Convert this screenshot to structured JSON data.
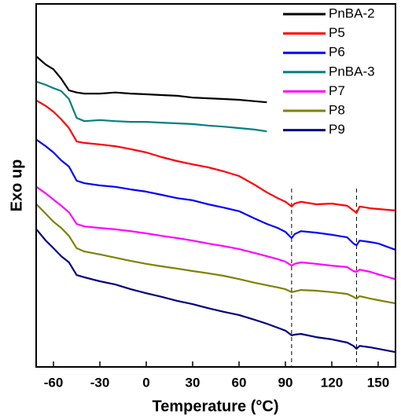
{
  "chart_data": {
    "type": "line",
    "xlabel": "Temperature (°C)",
    "ylabel": "Exo up",
    "xlim": [
      -71.2,
      161.2
    ],
    "ylim": [
      0,
      100
    ],
    "xticks": [
      -60,
      -30,
      0,
      30,
      60,
      90,
      120,
      150
    ],
    "legend": "upper right",
    "vlines": [
      94,
      136
    ],
    "x": [
      -71,
      -65,
      -60,
      -55,
      -50,
      -45,
      -40,
      -30,
      -20,
      -10,
      0,
      10,
      20,
      30,
      40,
      50,
      60,
      70,
      78,
      85,
      90,
      94,
      96,
      100,
      110,
      120,
      130,
      134,
      136,
      138,
      145,
      150,
      161
    ],
    "series": [
      {
        "name": "PnBA-2",
        "color": "#000000",
        "values": [
          85.5,
          83.3,
          82.0,
          79.4,
          76.2,
          75.6,
          75.3,
          75.3,
          75.6,
          75.3,
          75.1,
          74.9,
          74.7,
          74.2,
          74.0,
          73.8,
          73.6,
          73.2,
          72.9,
          null,
          null,
          null,
          null,
          null,
          null,
          null,
          null,
          null,
          null,
          null,
          null,
          null,
          null
        ]
      },
      {
        "name": "P5",
        "color": "#ff0000",
        "values": [
          73.4,
          71.9,
          70.3,
          68.2,
          65.8,
          62.1,
          61.7,
          61.3,
          60.8,
          60.0,
          59.1,
          57.8,
          56.7,
          55.8,
          55.0,
          53.9,
          52.6,
          50.2,
          48.1,
          46.5,
          45.5,
          44.2,
          45.0,
          45.5,
          44.8,
          45.0,
          44.4,
          43.1,
          42.4,
          44.2,
          43.7,
          43.5,
          43.1
        ]
      },
      {
        "name": "P6",
        "color": "#0000ff",
        "values": [
          62.6,
          60.8,
          59.1,
          56.9,
          55.2,
          51.3,
          50.6,
          50.0,
          49.6,
          48.9,
          48.3,
          47.4,
          46.5,
          45.9,
          44.8,
          43.9,
          42.9,
          40.9,
          39.4,
          38.3,
          37.2,
          35.5,
          36.6,
          37.4,
          37.0,
          36.4,
          35.7,
          34.0,
          33.5,
          34.8,
          34.4,
          34.0,
          32.3
        ]
      },
      {
        "name": "PnBA-3",
        "color": "#008080",
        "values": [
          78.6,
          77.7,
          76.8,
          76.0,
          73.8,
          68.6,
          67.7,
          68.0,
          67.7,
          67.5,
          67.5,
          67.3,
          67.1,
          66.9,
          66.5,
          66.2,
          65.8,
          65.4,
          64.9,
          null,
          null,
          null,
          null,
          null,
          null,
          null,
          null,
          null,
          null,
          null,
          null,
          null,
          null
        ]
      },
      {
        "name": "P7",
        "color": "#ff00ff",
        "values": [
          49.6,
          47.8,
          46.1,
          44.4,
          42.6,
          39.4,
          38.7,
          38.3,
          37.9,
          37.4,
          36.8,
          36.1,
          35.5,
          34.8,
          34.0,
          33.3,
          32.5,
          31.4,
          30.5,
          29.7,
          29.0,
          27.9,
          28.4,
          28.8,
          28.4,
          27.9,
          27.5,
          26.4,
          26.2,
          26.8,
          26.2,
          25.5,
          24.2
        ]
      },
      {
        "name": "P8",
        "color": "#808000",
        "values": [
          44.8,
          42.2,
          40.0,
          38.3,
          36.1,
          32.7,
          31.8,
          31.0,
          30.1,
          29.2,
          28.4,
          27.7,
          27.1,
          26.4,
          25.8,
          25.1,
          24.2,
          23.2,
          22.5,
          21.9,
          21.4,
          20.6,
          20.8,
          21.2,
          21.0,
          20.6,
          20.1,
          19.3,
          18.8,
          19.5,
          18.8,
          18.4,
          17.5
        ]
      },
      {
        "name": "P9",
        "color": "#000080",
        "values": [
          37.9,
          34.8,
          32.7,
          30.5,
          28.8,
          25.3,
          24.7,
          23.6,
          22.7,
          21.4,
          20.3,
          19.3,
          18.2,
          17.3,
          16.2,
          15.2,
          14.3,
          13.0,
          11.9,
          10.8,
          10.0,
          8.7,
          8.9,
          9.1,
          8.2,
          7.6,
          6.7,
          5.8,
          5.0,
          5.8,
          5.4,
          5.0,
          4.1
        ]
      }
    ]
  }
}
